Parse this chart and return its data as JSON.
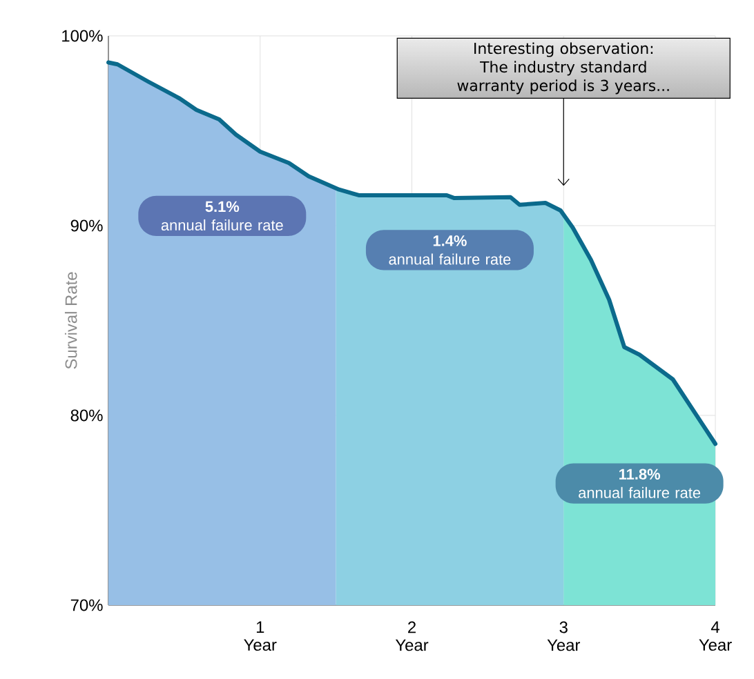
{
  "chart_data": {
    "type": "line",
    "ylabel": "Survival Rate",
    "x": [
      0,
      0.06,
      0.26,
      0.47,
      0.58,
      0.73,
      0.84,
      1.0,
      1.19,
      1.32,
      1.52,
      1.65,
      1.74,
      2.23,
      2.28,
      2.65,
      2.71,
      2.88,
      2.98,
      3.06,
      3.18,
      3.3,
      3.4,
      3.5,
      3.72,
      4.0
    ],
    "series": [
      {
        "color": "#0b6a8c",
        "values": [
          98.6,
          98.5,
          97.6,
          96.7,
          96.1,
          95.6,
          94.8,
          93.9,
          93.3,
          92.6,
          91.9,
          91.6,
          91.6,
          91.6,
          91.45,
          91.5,
          91.1,
          91.2,
          90.8,
          89.9,
          88.2,
          86.1,
          83.6,
          83.2,
          81.9,
          78.5
        ]
      }
    ],
    "xlim": [
      0,
      4
    ],
    "ylim": [
      70,
      100
    ],
    "xticks": [
      {
        "value": 1,
        "label": "1 Year"
      },
      {
        "value": 2,
        "label": "2 Year"
      },
      {
        "value": 3,
        "label": "3 Year"
      },
      {
        "value": 4,
        "label": "4 Year"
      }
    ],
    "yticks": [
      {
        "value": 70,
        "label": "70%"
      },
      {
        "value": 80,
        "label": "80%"
      },
      {
        "value": 90,
        "label": "90%"
      },
      {
        "value": 100,
        "label": "100%"
      }
    ],
    "grid": true,
    "bands": [
      {
        "axis": "x",
        "from": 0,
        "to": 1.5,
        "label": "**5.1%** annual failure rate",
        "color": "#97bfe6"
      },
      {
        "axis": "x",
        "from": 1.5,
        "to": 3,
        "label": "**1.4%** annual failure rate",
        "color": "#8dd0e3"
      },
      {
        "axis": "x",
        "from": 3,
        "to": 4,
        "label": "**11.8%** annual failure rate",
        "color": "#7de3d5"
      }
    ],
    "annotations": [
      {
        "text": "Interesting observation: The industry standard warranty period is 3 years...",
        "x": 3,
        "y": 92.1
      }
    ]
  }
}
